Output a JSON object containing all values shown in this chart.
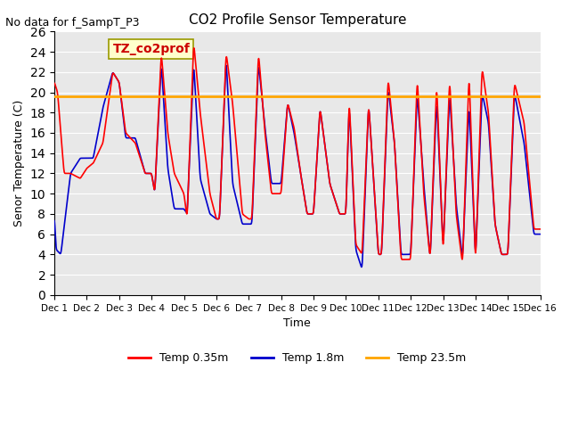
{
  "title": "CO2 Profile Sensor Temperature",
  "top_left_text": "No data for f_SampT_P3",
  "ylabel": "Senor Temperature (C)",
  "xlabel": "Time",
  "ylim": [
    0,
    26
  ],
  "yticks": [
    0,
    2,
    4,
    6,
    8,
    10,
    12,
    14,
    16,
    18,
    20,
    22,
    24,
    26
  ],
  "constant_line_value": 19.6,
  "constant_line_color": "#FFA500",
  "line_red_color": "#FF0000",
  "line_blue_color": "#0000CC",
  "bg_color": "#E8E8E8",
  "legend_label_red": "Temp 0.35m",
  "legend_label_blue": "Temp 1.8m",
  "legend_label_orange": "Temp 23.5m",
  "annotation_text": "TZ_co2prof",
  "annotation_color": "#CC0000",
  "annotation_bg": "#FFFFCC",
  "annotation_border": "#999900",
  "xtick_labels": [
    "Dec 1",
    "Dec 2",
    "Dec 3",
    "Dec 4",
    "Dec 5",
    "Dec 6",
    "Dec 7",
    "Dec 8",
    "Dec 9",
    "Dec 10",
    "Dec 11",
    "Dec 12",
    "Dec 13",
    "Dec 14",
    "Dec 15",
    "Dec 16"
  ],
  "num_days": 16
}
